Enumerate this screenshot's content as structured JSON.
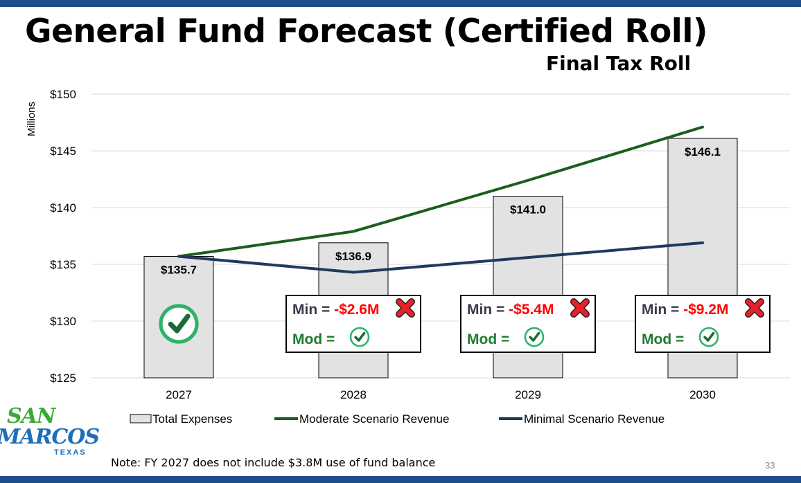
{
  "title": "General Fund Forecast (Certified Roll)",
  "subtitle": "Final Tax Roll",
  "note": "Note: FY 2027 does not include $3.8M use of fund balance",
  "page_number": "33",
  "logo": {
    "line1": "SAN",
    "line2": "MARCOS",
    "line3": "TEXAS"
  },
  "colors": {
    "bar_fill": "#e2e2e2",
    "moderate": "#1b5e20",
    "minimal": "#1f3a5f",
    "negative": "#ff0000",
    "label_dark": "#3a3a4a",
    "mod_green": "#1e7b2e",
    "check_green": "#2eb369",
    "x_red": "#e8202a",
    "grid": "#d9d9d9",
    "brand_bar": "#1f4e8c"
  },
  "chart_data": {
    "type": "bar",
    "categories": [
      "2027",
      "2028",
      "2029",
      "2030"
    ],
    "ylabel": "Millions",
    "ylim": [
      125,
      150
    ],
    "yticks": [
      125,
      130,
      135,
      140,
      145,
      150
    ],
    "ytick_labels": [
      "$125",
      "$130",
      "$135",
      "$140",
      "$145",
      "$150"
    ],
    "grid": true,
    "legend_position": "bottom",
    "series": [
      {
        "name": "Total Expenses",
        "kind": "bar",
        "values": [
          135.7,
          136.9,
          141.0,
          146.1
        ],
        "labels": [
          "$135.7",
          "$136.9",
          "$141.0",
          "$146.1"
        ]
      },
      {
        "name": "Moderate Scenario Revenue",
        "kind": "line",
        "values": [
          135.7,
          137.9,
          142.4,
          147.1
        ]
      },
      {
        "name": "Minimal Scenario Revenue",
        "kind": "line",
        "values": [
          135.7,
          134.3,
          135.6,
          136.9
        ]
      }
    ],
    "annotations": [
      {
        "category": "2027",
        "type": "check"
      },
      {
        "category": "2028",
        "type": "box",
        "min_label": "Min = ",
        "min_value": "-$2.6M",
        "mod_label": "Mod = "
      },
      {
        "category": "2029",
        "type": "box",
        "min_label": "Min = ",
        "min_value": "-$5.4M",
        "mod_label": "Mod = "
      },
      {
        "category": "2030",
        "type": "box",
        "min_label": "Min = ",
        "min_value": "-$9.2M",
        "mod_label": "Mod = "
      }
    ]
  }
}
